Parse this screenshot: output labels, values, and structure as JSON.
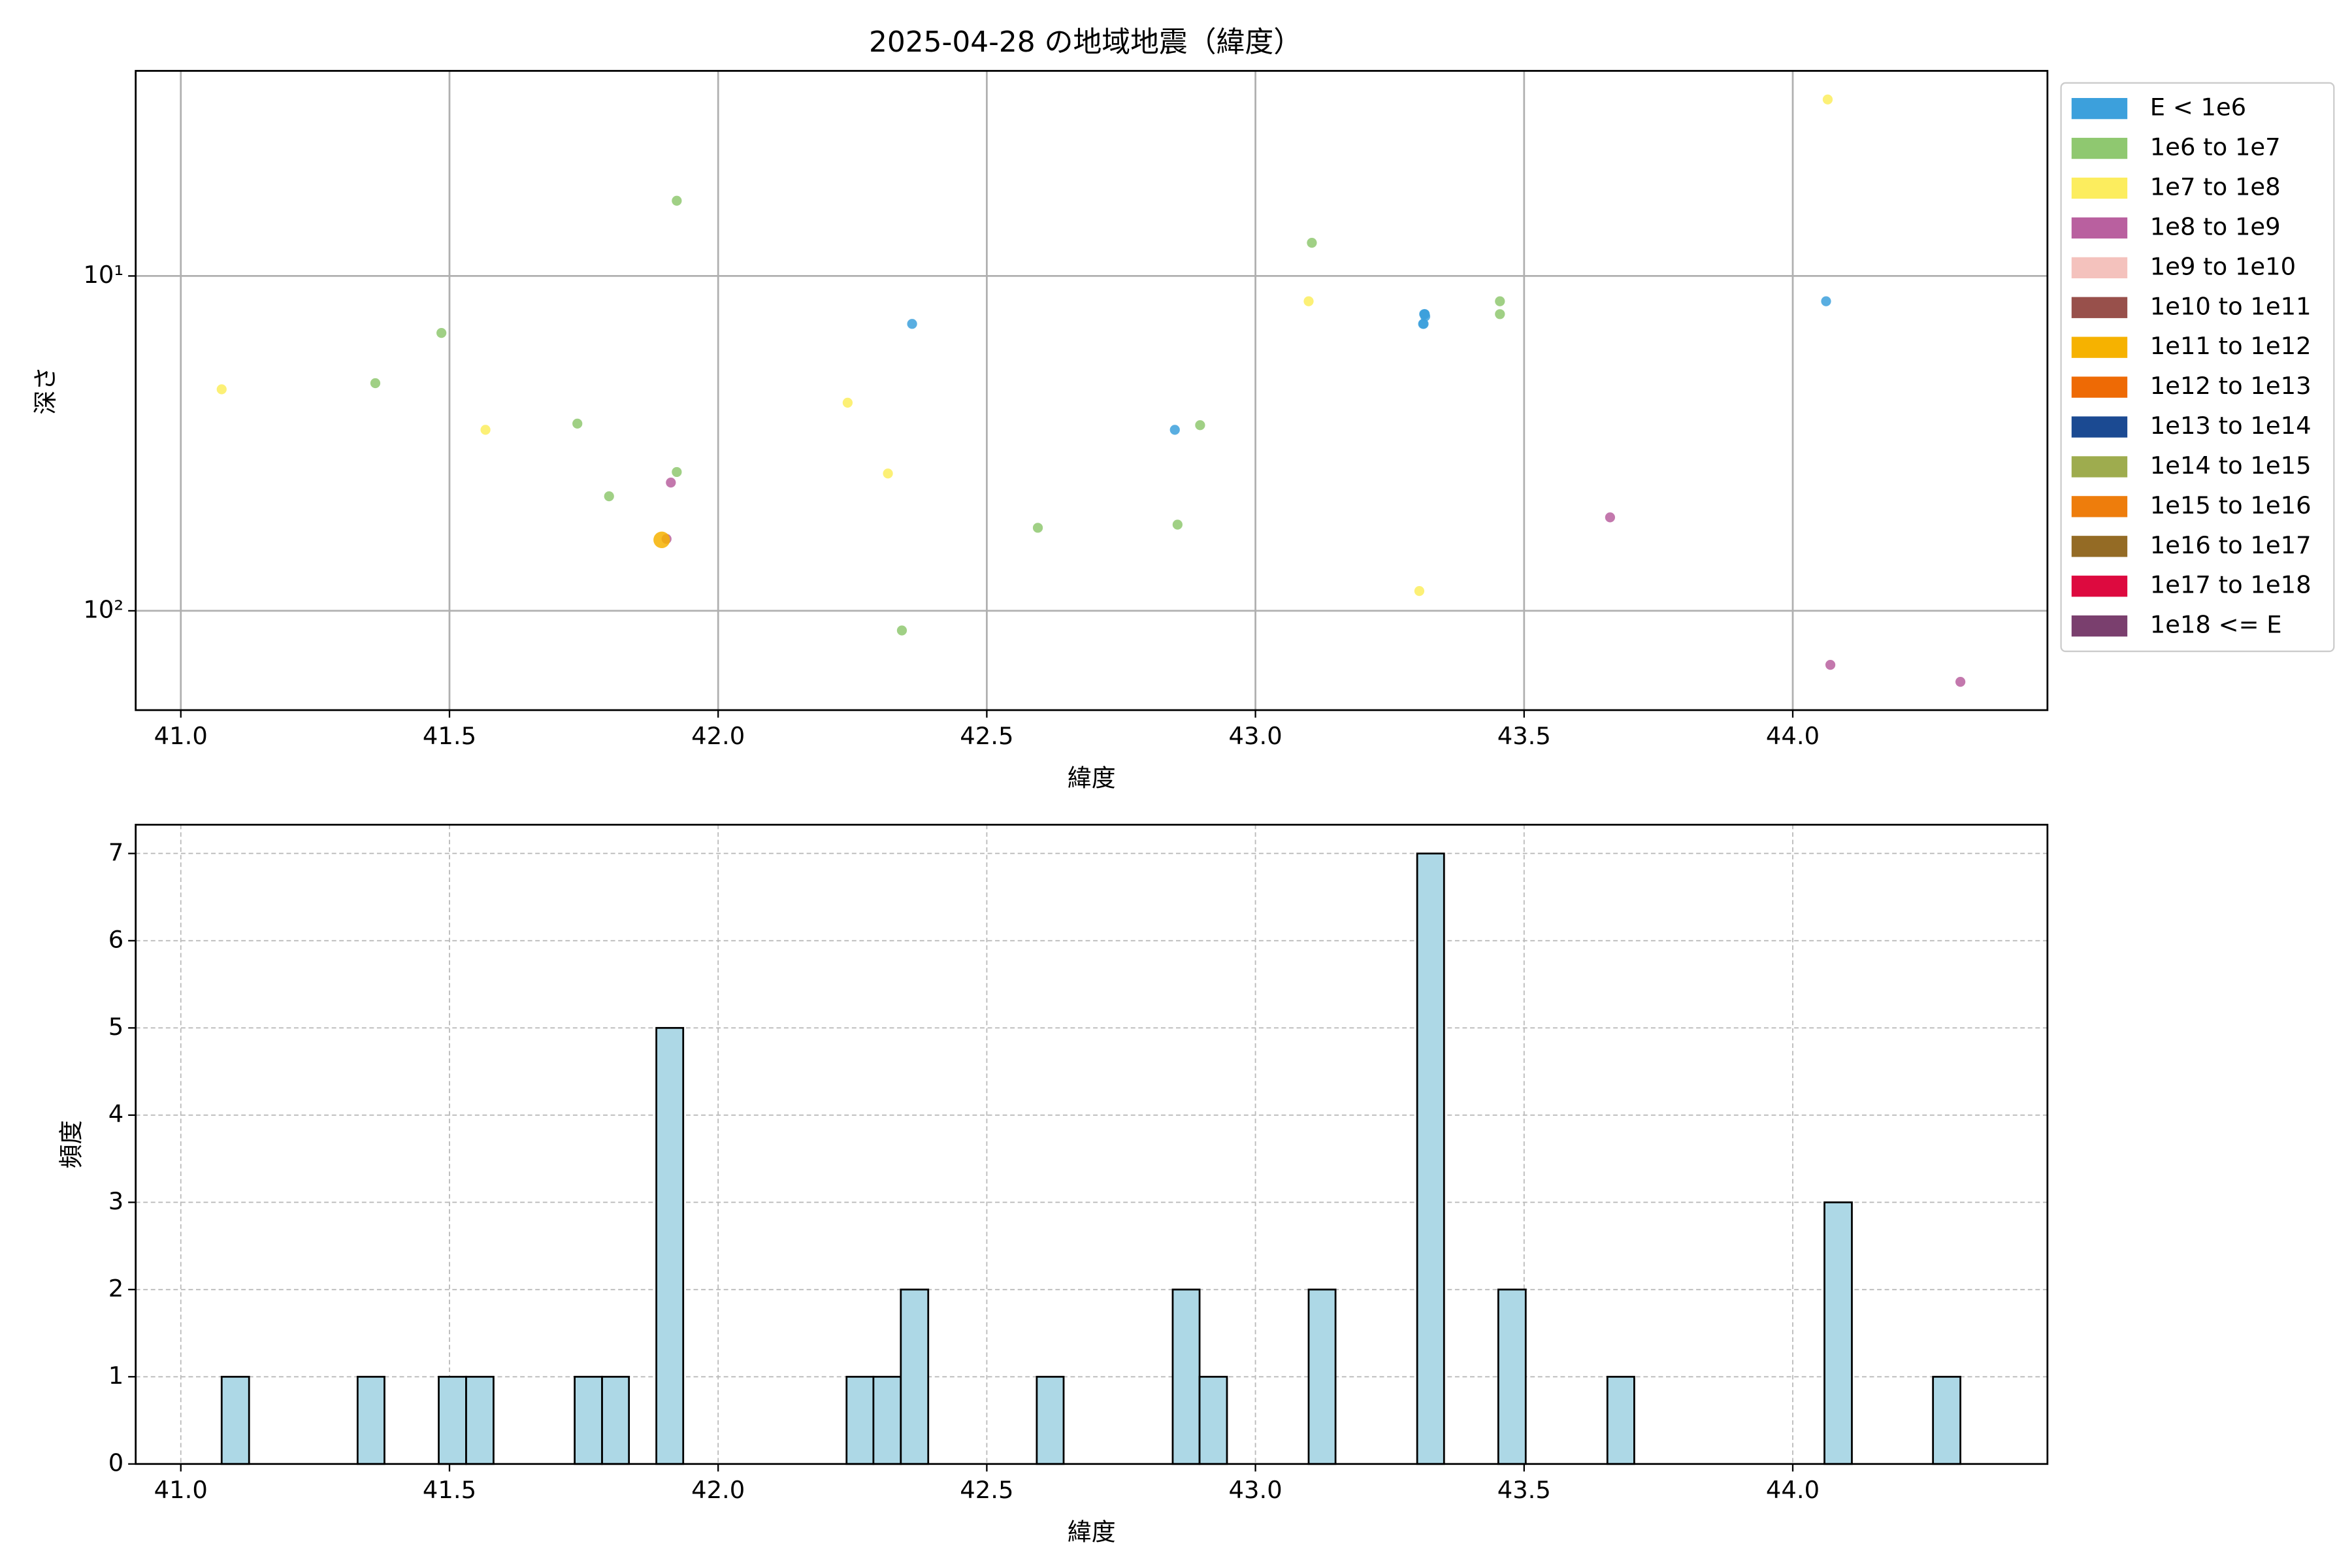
{
  "chart_data": [
    {
      "type": "scatter",
      "title": "2025-04-28 の地域地震（緯度）",
      "xlabel": "緯度",
      "ylabel": "深さ",
      "xlim": [
        40.916,
        44.474
      ],
      "xticks": [
        {
          "value": 41,
          "label": "41.0"
        },
        {
          "value": 41.5,
          "label": "41.5"
        },
        {
          "value": 42,
          "label": "42.0"
        },
        {
          "value": 42.5,
          "label": "42.5"
        },
        {
          "value": 43,
          "label": "43.0"
        },
        {
          "value": 43.5,
          "label": "43.5"
        },
        {
          "value": 44,
          "label": "44.0"
        }
      ],
      "ylim": [
        2.44,
        198
      ],
      "y_log": true,
      "y_inverted": true,
      "yticks": [
        {
          "value": 10,
          "label": "10¹"
        },
        {
          "value": 100,
          "label": "10²"
        }
      ],
      "grid": true,
      "legend": "outside right",
      "series": [
        {
          "name": "E < 1e6",
          "color": "#3ca0dc",
          "x": [
            42.361,
            42.85,
            43.315,
            43.312,
            43.315,
            43.316,
            43.313,
            43.314,
            44.062
          ],
          "y": [
            13.9,
            28.8,
            13.0,
            13.9,
            13.0,
            13.2,
            13.9,
            13.0,
            11.9
          ]
        },
        {
          "name": "1e6 to 1e7",
          "color": "#8fc870",
          "x": [
            41.362,
            41.485,
            41.738,
            41.797,
            41.923,
            41.923,
            42.342,
            42.595,
            42.855,
            42.897,
            43.105,
            43.455,
            43.455
          ],
          "y": [
            20.9,
            14.8,
            27.6,
            45.5,
            5.96,
            38.5,
            114.5,
            56.5,
            55.3,
            27.9,
            7.96,
            11.9,
            13.0
          ]
        },
        {
          "name": "1e7 to 1e8",
          "color": "#fced5e",
          "x": [
            41.076,
            41.567,
            42.241,
            42.316,
            43.099,
            43.305,
            44.065
          ],
          "y": [
            21.8,
            28.8,
            23.9,
            38.9,
            11.9,
            87.3,
            2.97
          ]
        },
        {
          "name": "1e8 to 1e9",
          "color": "#b9609f",
          "x": [
            41.912,
            41.904,
            43.66,
            44.07,
            44.312
          ],
          "y": [
            41.4,
            61,
            52.6,
            145,
            163
          ]
        },
        {
          "name": "1e9 to 1e10",
          "color": "#f4c2bd",
          "x": [],
          "y": []
        },
        {
          "name": "1e10 to 1e11",
          "color": "#98504b",
          "x": [],
          "y": []
        },
        {
          "name": "1e11 to 1e12",
          "color": "#f6b200",
          "x": [
            41.895
          ],
          "y": [
            61.4
          ]
        },
        {
          "name": "1e12 to 1e13",
          "color": "#ee6a05",
          "x": [],
          "y": []
        },
        {
          "name": "1e13 to 1e14",
          "color": "#1b4a92",
          "x": [],
          "y": []
        },
        {
          "name": "1e14 to 1e15",
          "color": "#9eac4e",
          "x": [],
          "y": []
        },
        {
          "name": "1e15 to 1e16",
          "color": "#ee7d0c",
          "x": [],
          "y": []
        },
        {
          "name": "1e16 to 1e17",
          "color": "#946b25",
          "x": [],
          "y": []
        },
        {
          "name": "1e17 to 1e18",
          "color": "#dd0a3f",
          "x": [],
          "y": []
        },
        {
          "name": "1e18 <= E",
          "color": "#7a3f6e",
          "x": [],
          "y": []
        }
      ]
    },
    {
      "type": "histogram",
      "xlabel": "緯度",
      "ylabel": "頻度",
      "color": "#add8e6",
      "edgecolor": "#000000",
      "xlim": [
        40.916,
        44.474
      ],
      "xticks": [
        {
          "value": 41,
          "label": "41.0"
        },
        {
          "value": 41.5,
          "label": "41.5"
        },
        {
          "value": 42,
          "label": "42.0"
        },
        {
          "value": 42.5,
          "label": "42.5"
        },
        {
          "value": 43,
          "label": "43.0"
        },
        {
          "value": 43.5,
          "label": "43.5"
        },
        {
          "value": 44,
          "label": "44.0"
        }
      ],
      "ylim": [
        0,
        7.33
      ],
      "yticks": [
        0,
        1,
        2,
        3,
        4,
        5,
        6,
        7
      ],
      "grid": true,
      "bins": [
        41.076,
        41.127,
        41.177,
        41.228,
        41.278,
        41.329,
        41.379,
        41.43,
        41.48,
        41.531,
        41.582,
        41.632,
        41.683,
        41.733,
        41.784,
        41.834,
        41.885,
        41.935,
        41.986,
        42.037,
        42.087,
        42.138,
        42.188,
        42.239,
        42.289,
        42.34,
        42.391,
        42.441,
        42.492,
        42.542,
        42.593,
        42.643,
        42.694,
        42.745,
        42.795,
        42.846,
        42.896,
        42.947,
        42.997,
        43.048,
        43.099,
        43.149,
        43.2,
        43.25,
        43.301,
        43.351,
        43.402,
        43.452,
        43.503,
        43.554,
        43.604,
        43.655,
        43.705,
        43.756,
        43.806,
        43.857,
        43.908,
        43.958,
        44.009,
        44.059,
        44.11,
        44.16,
        44.211,
        44.261,
        44.312
      ],
      "counts": [
        1,
        0,
        0,
        0,
        0,
        1,
        0,
        0,
        1,
        1,
        0,
        0,
        0,
        1,
        1,
        0,
        5,
        0,
        0,
        0,
        0,
        0,
        0,
        1,
        1,
        2,
        0,
        0,
        0,
        0,
        1,
        0,
        0,
        0,
        0,
        2,
        1,
        0,
        0,
        0,
        2,
        0,
        0,
        0,
        7,
        0,
        0,
        2,
        0,
        0,
        0,
        1,
        0,
        0,
        0,
        0,
        0,
        0,
        0,
        3,
        0,
        0,
        0,
        1
      ]
    }
  ]
}
